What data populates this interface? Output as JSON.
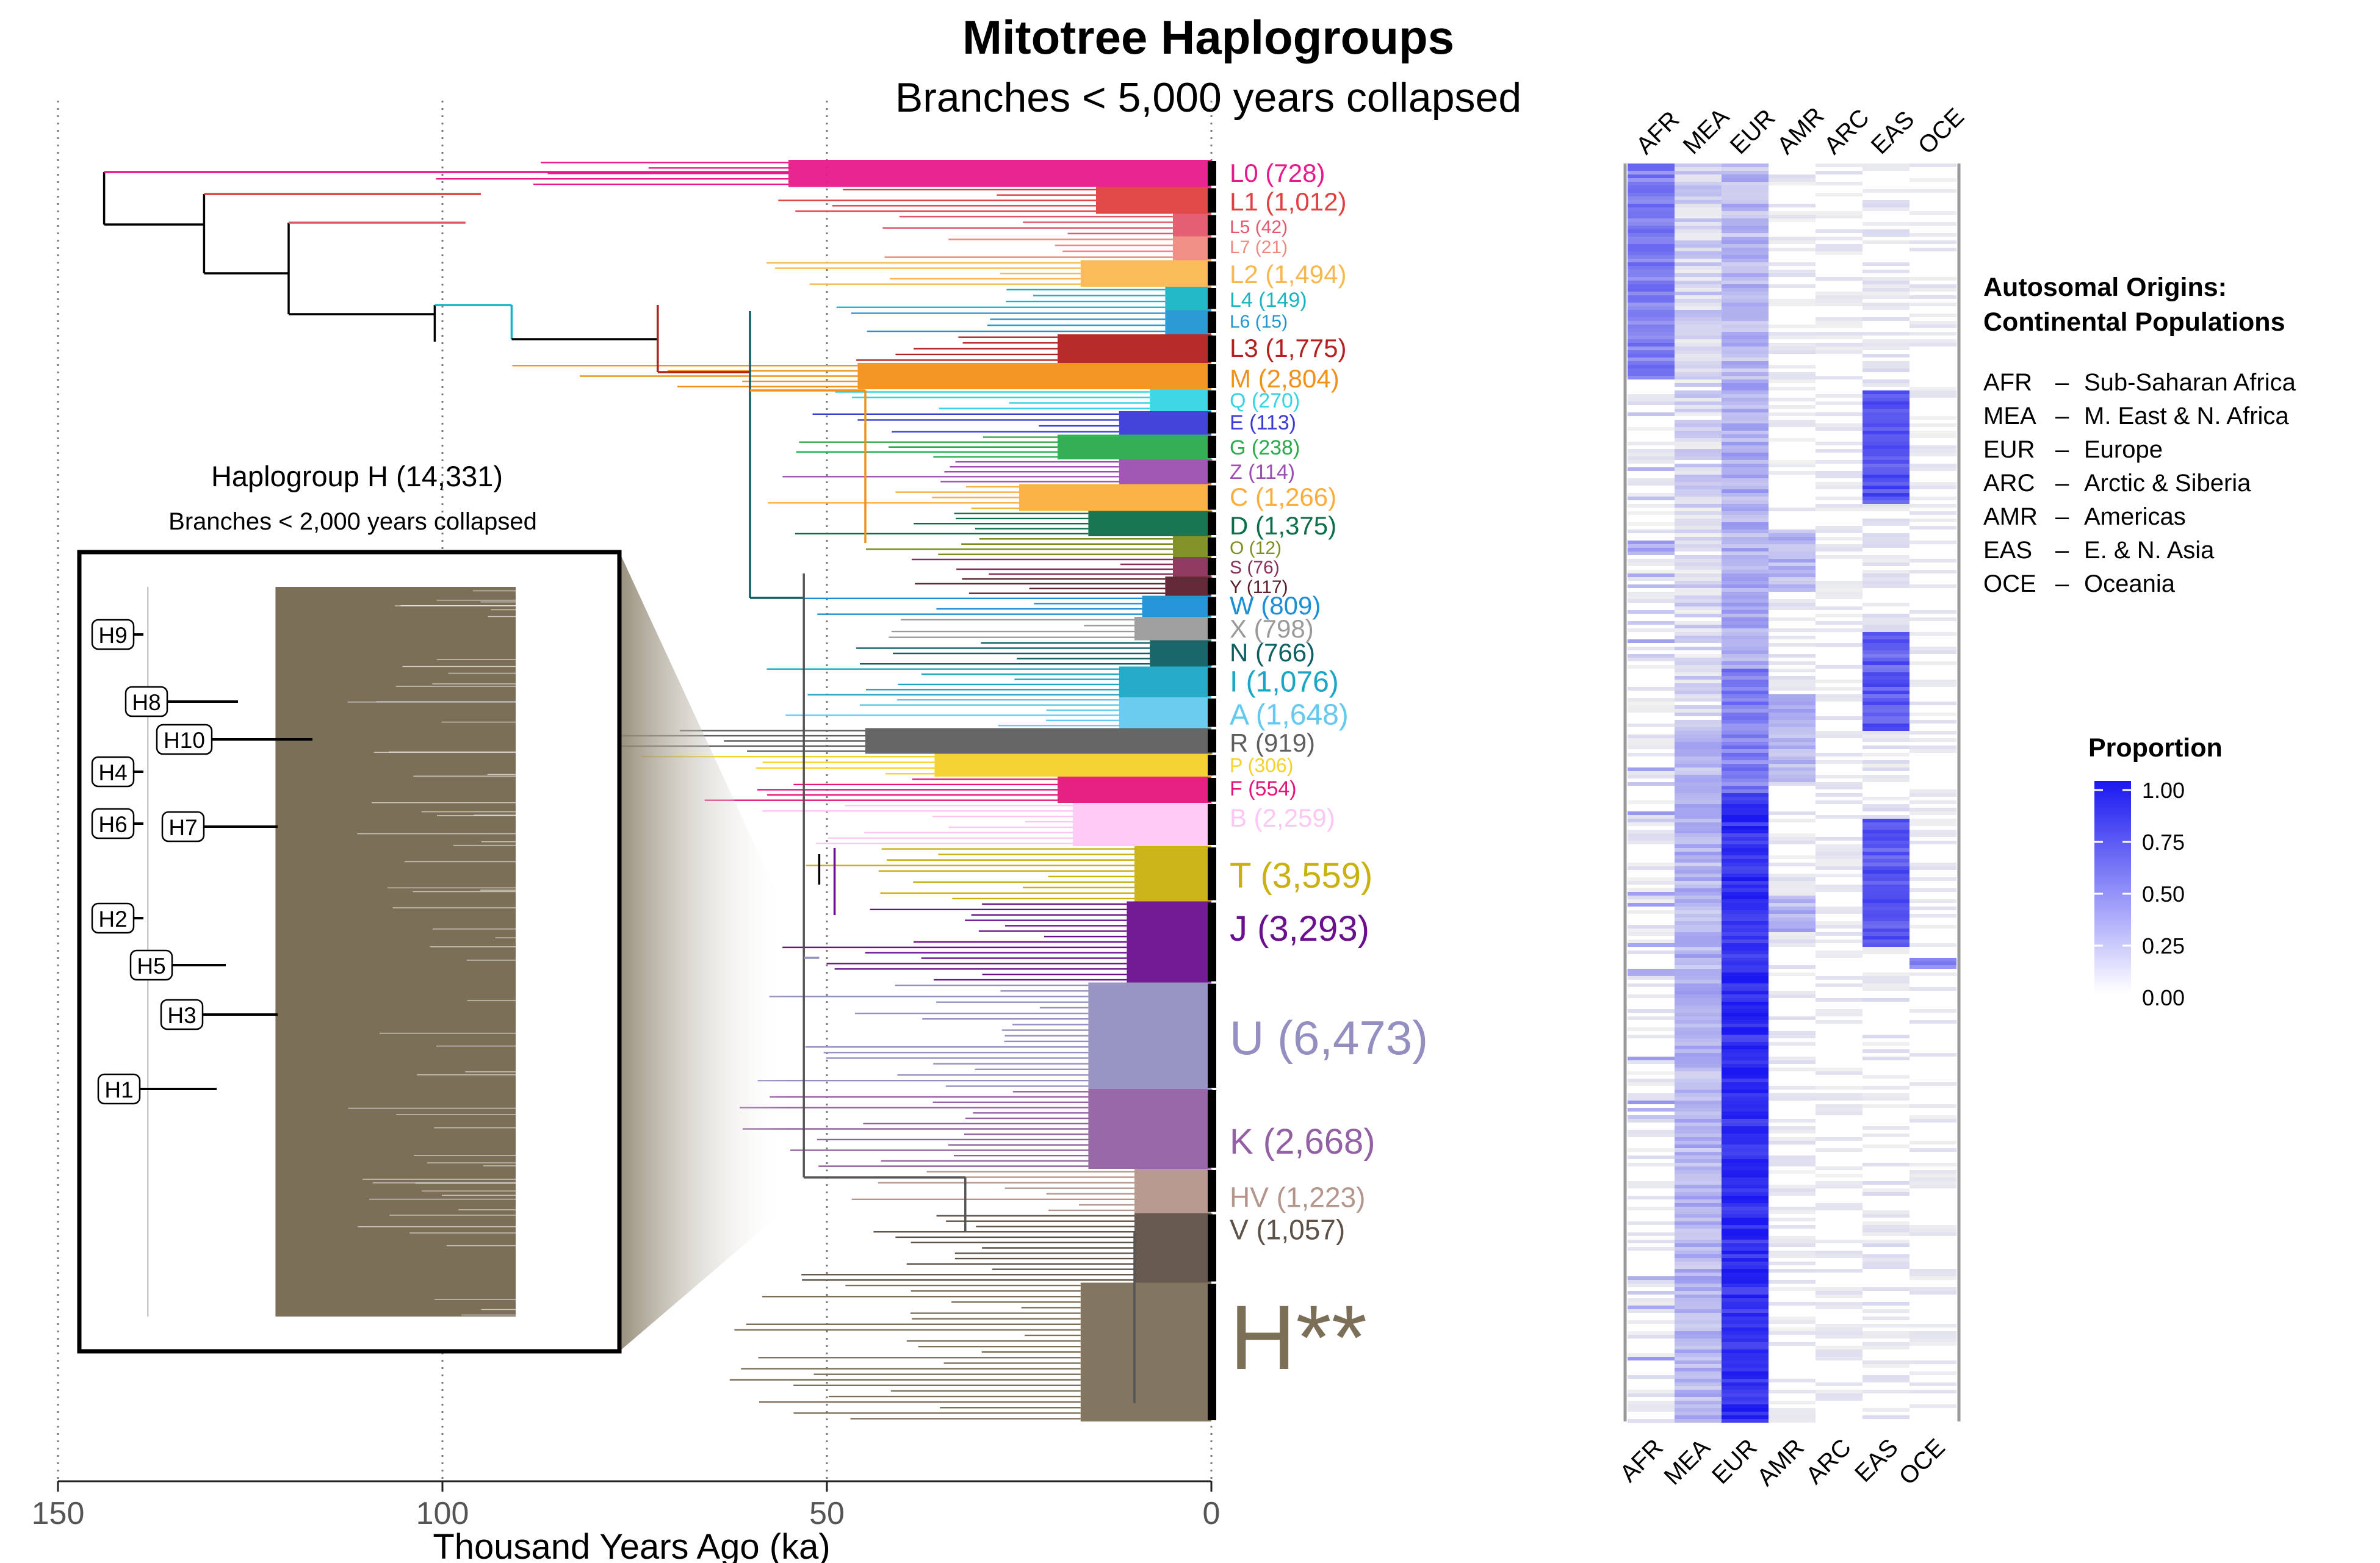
{
  "title": "Mitotree Haplogroups",
  "subtitle": "Branches < 5,000 years collapsed",
  "chart_data": [
    {
      "type": "tree",
      "xlabel": "Thousand Years Ago (ka)",
      "xlim": [
        150,
        0
      ],
      "xticks": [
        150,
        100,
        50,
        0
      ],
      "grid": "dotted vertical at ticks",
      "haplogroups": [
        {
          "label": "L0 (728)",
          "name": "L0",
          "count": 728,
          "color": "#e8198b"
        },
        {
          "label": "L1 (1,012)",
          "name": "L1",
          "count": 1012,
          "color": "#e0403f"
        },
        {
          "label": "L5 (42)",
          "name": "L5",
          "count": 42,
          "color": "#e4566a"
        },
        {
          "label": "L7 (21)",
          "name": "L7",
          "count": 21,
          "color": "#f08a80"
        },
        {
          "label": "L2 (1,494)",
          "name": "L2",
          "count": 1494,
          "color": "#f9b84f"
        },
        {
          "label": "L4 (149)",
          "name": "L4",
          "count": 149,
          "color": "#17b5c4"
        },
        {
          "label": "L6 (15)",
          "name": "L6",
          "count": 15,
          "color": "#2196d3"
        },
        {
          "label": "L3 (1,775)",
          "name": "L3",
          "count": 1775,
          "color": "#b3211f"
        },
        {
          "label": "M (2,804)",
          "name": "M",
          "count": 2804,
          "color": "#f39017"
        },
        {
          "label": "Q (270)",
          "name": "Q",
          "count": 270,
          "color": "#35d5e3"
        },
        {
          "label": "E (113)",
          "name": "E",
          "count": 113,
          "color": "#3a3ad8"
        },
        {
          "label": "G (238)",
          "name": "G",
          "count": 238,
          "color": "#2aab4c"
        },
        {
          "label": "Z (114)",
          "name": "Z",
          "count": 114,
          "color": "#9c4fb0"
        },
        {
          "label": "C (1,266)",
          "name": "C",
          "count": 1266,
          "color": "#fbae3c"
        },
        {
          "label": "D (1,375)",
          "name": "D",
          "count": 1375,
          "color": "#0c6f4a"
        },
        {
          "label": "O (12)",
          "name": "O",
          "count": 12,
          "color": "#7c8d1d"
        },
        {
          "label": "S (76)",
          "name": "S",
          "count": 76,
          "color": "#8b2f5a"
        },
        {
          "label": "Y (117)",
          "name": "Y",
          "count": 117,
          "color": "#5a1f2b"
        },
        {
          "label": "W (809)",
          "name": "W",
          "count": 809,
          "color": "#1a8fd6"
        },
        {
          "label": "X (798)",
          "name": "X",
          "count": 798,
          "color": "#9a9a9a"
        },
        {
          "label": "N (766)",
          "name": "N",
          "count": 766,
          "color": "#0d5f62"
        },
        {
          "label": "I (1,076)",
          "name": "I",
          "count": 1076,
          "color": "#1aa7c6"
        },
        {
          "label": "A (1,648)",
          "name": "A",
          "count": 1648,
          "color": "#63c9ef"
        },
        {
          "label": "R (919)",
          "name": "R",
          "count": 919,
          "color": "#5e5e5e"
        },
        {
          "label": "P (306)",
          "name": "P",
          "count": 306,
          "color": "#f5d12a"
        },
        {
          "label": "F (554)",
          "name": "F",
          "count": 554,
          "color": "#e5157c"
        },
        {
          "label": "B (2,259)",
          "name": "B",
          "count": 2259,
          "color": "#fcc7f3"
        },
        {
          "label": "T (3,559)",
          "name": "T",
          "count": 3559,
          "color": "#c9b10e"
        },
        {
          "label": "J (3,293)",
          "name": "J",
          "count": 3293,
          "color": "#6a0f8e"
        },
        {
          "label": "U (6,473)",
          "name": "U",
          "count": 6473,
          "color": "#938fc0"
        },
        {
          "label": "K (2,668)",
          "name": "K",
          "count": 2668,
          "color": "#9460a4"
        },
        {
          "label": "HV (1,223)",
          "name": "HV",
          "count": 1223,
          "color": "#b4958b"
        },
        {
          "label": "V (1,057)",
          "name": "V",
          "count": 1057,
          "color": "#5e5148"
        },
        {
          "label": "H**",
          "name": "H",
          "color": "#7b6f57"
        }
      ]
    },
    {
      "type": "tree",
      "title": "Haplogroup H (14,331)",
      "subtitle": "Branches < 2,000 years collapsed",
      "clades": [
        "H9",
        "H8",
        "H10",
        "H4",
        "H6",
        "H7",
        "H2",
        "H5",
        "H3",
        "H1"
      ],
      "color": "#7b6f57"
    },
    {
      "type": "heatmap",
      "columns": [
        "AFR",
        "MEA",
        "EUR",
        "AMR",
        "ARC",
        "EAS",
        "OCE"
      ],
      "color_scale": {
        "min_color": "#ffffff",
        "max_color": "#1a18f0"
      },
      "legend": {
        "title": "Proportion",
        "ticks": [
          "1.00",
          "0.75",
          "0.50",
          "0.25",
          "0.00"
        ],
        "position": "right"
      }
    }
  ],
  "legend_text": {
    "heading1": "Autosomal Origins:",
    "heading2": "Continental Populations",
    "items": [
      {
        "code": "AFR",
        "dash": "–",
        "name": "Sub-Saharan Africa"
      },
      {
        "code": "MEA",
        "dash": "–",
        "name": "M. East & N. Africa"
      },
      {
        "code": "EUR",
        "dash": "–",
        "name": "Europe"
      },
      {
        "code": "ARC",
        "dash": "–",
        "name": "Arctic & Siberia"
      },
      {
        "code": "AMR",
        "dash": "–",
        "name": "Americas"
      },
      {
        "code": "EAS",
        "dash": "–",
        "name": "E. & N. Asia"
      },
      {
        "code": "OCE",
        "dash": "–",
        "name": "Oceania"
      }
    ]
  }
}
